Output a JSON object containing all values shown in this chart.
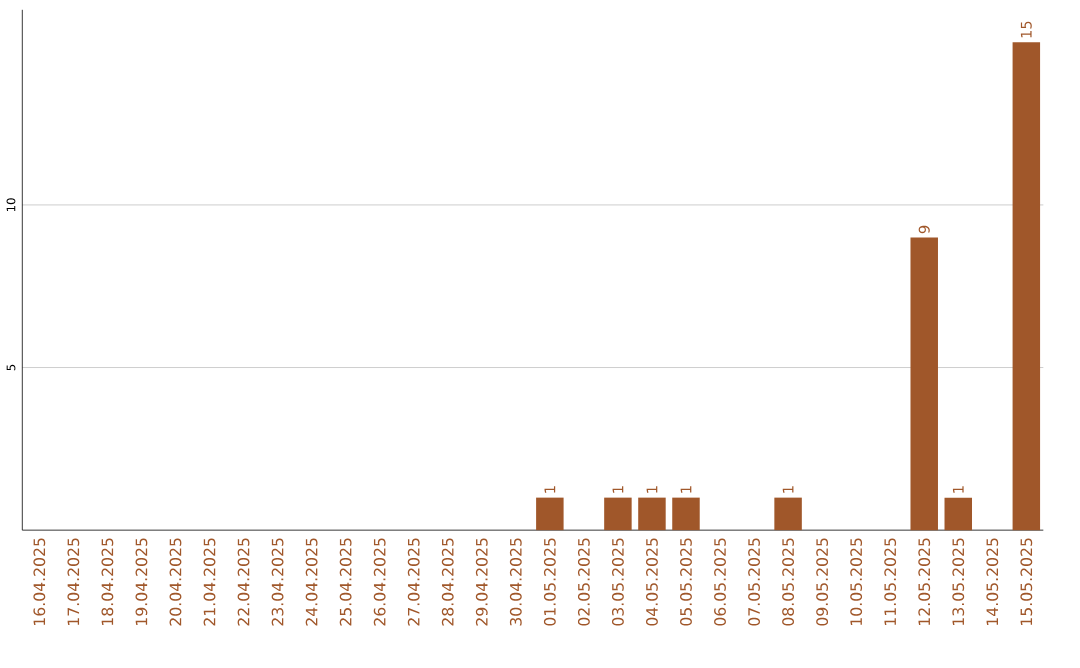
{
  "chart_data": {
    "type": "bar",
    "categories": [
      "16.04.2025",
      "17.04.2025",
      "18.04.2025",
      "19.04.2025",
      "20.04.2025",
      "21.04.2025",
      "22.04.2025",
      "23.04.2025",
      "24.04.2025",
      "25.04.2025",
      "26.04.2025",
      "27.04.2025",
      "28.04.2025",
      "29.04.2025",
      "30.04.2025",
      "01.05.2025",
      "02.05.2025",
      "03.05.2025",
      "04.05.2025",
      "05.05.2025",
      "06.05.2025",
      "07.05.2025",
      "08.05.2025",
      "09.05.2025",
      "10.05.2025",
      "11.05.2025",
      "12.05.2025",
      "13.05.2025",
      "14.05.2025",
      "15.05.2025"
    ],
    "values": [
      0,
      0,
      0,
      0,
      0,
      0,
      0,
      0,
      0,
      0,
      0,
      0,
      0,
      0,
      0,
      1,
      0,
      1,
      1,
      1,
      0,
      0,
      1,
      0,
      0,
      0,
      9,
      1,
      0,
      15
    ],
    "value_labels": [
      null,
      null,
      null,
      null,
      null,
      null,
      null,
      null,
      null,
      null,
      null,
      null,
      null,
      null,
      null,
      "1",
      null,
      "1",
      "1",
      "1",
      null,
      null,
      "1",
      null,
      null,
      null,
      "9",
      "1",
      null,
      "15"
    ],
    "color": "#a0572a",
    "ylim": [
      0,
      16
    ],
    "yticks": [
      5,
      10
    ],
    "grid": "y"
  }
}
